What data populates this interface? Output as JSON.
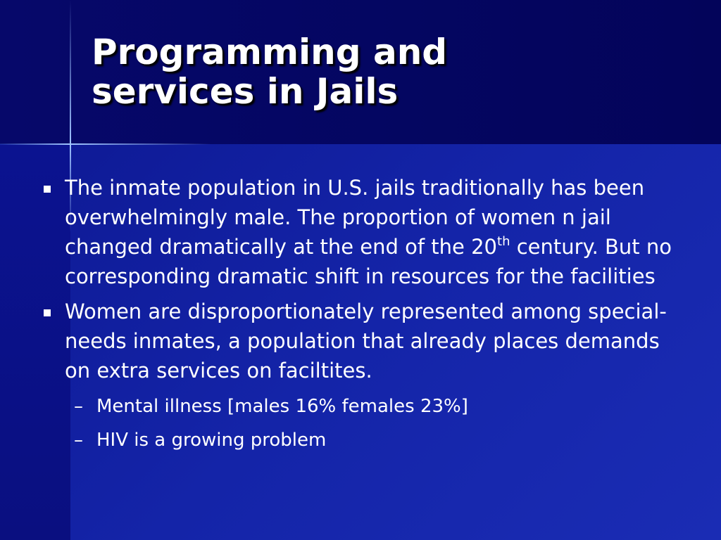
{
  "slide": {
    "title": "Programming and services in Jails",
    "bullets": [
      {
        "parts": [
          "The inmate population in U.S. jails traditionally has been overwhelmingly male. The proportion of women n jail changed dramatically at the end of the 20",
          "th",
          " century. But no corresponding dramatic shift in resources for the facilities"
        ]
      },
      {
        "text": "Women are disproportionately represented among special-needs inmates, a population that already places demands on extra services on faciltites.",
        "subitems": [
          "Mental illness [males 16% females 23%]",
          "HIV is a growing problem"
        ]
      }
    ]
  }
}
